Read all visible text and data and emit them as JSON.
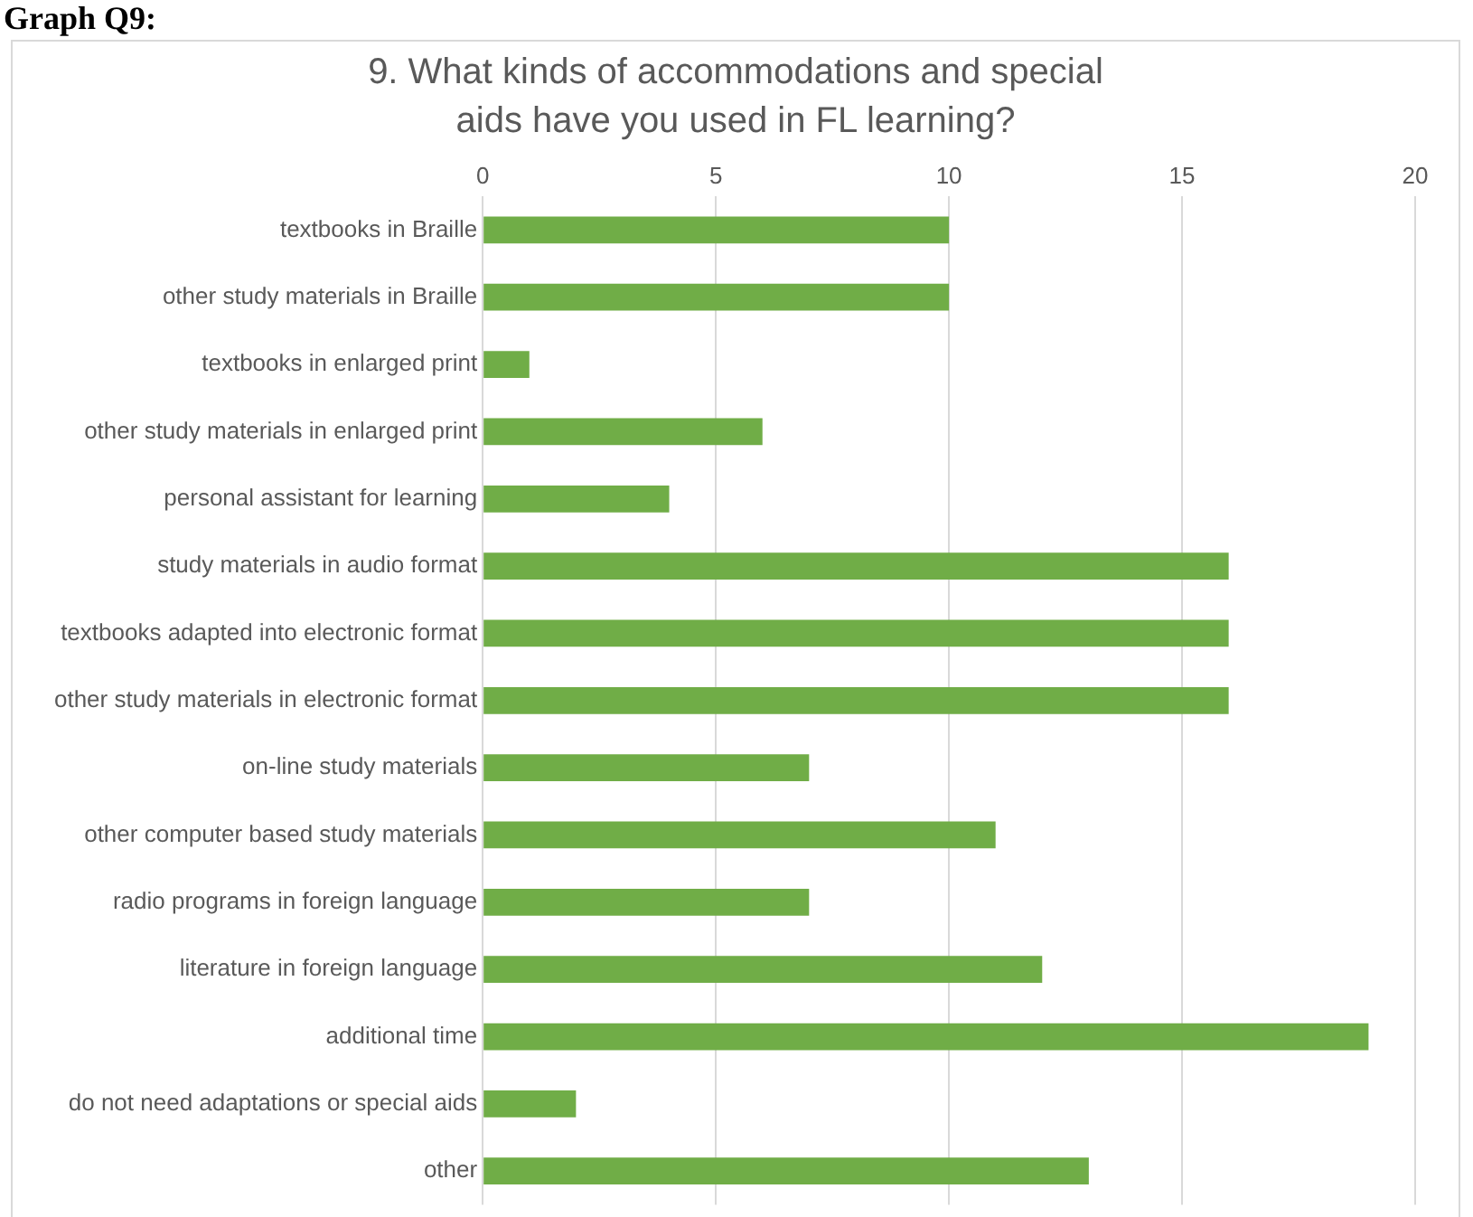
{
  "chart_data": {
    "type": "bar",
    "orientation": "horizontal",
    "title": "9. What kinds of accommodations and special aids have you used in FL learning?",
    "annotations": [
      "Graph Q9:"
    ],
    "categories": [
      "textbooks in Braille",
      "other study materials in Braille",
      "textbooks in enlarged print",
      "other study materials in enlarged print",
      "personal assistant for learning",
      "study materials in audio format",
      "textbooks adapted into electronic format",
      "other study materials in electronic format",
      "on-line study materials",
      "other computer based study materials",
      "radio programs in foreign language",
      "literature in foreign language",
      "additional time",
      "do not need adaptations or special aids",
      "other"
    ],
    "values": [
      10,
      10,
      1,
      6,
      4,
      16,
      16,
      16,
      7,
      11,
      7,
      12,
      19,
      2,
      13
    ],
    "color": "#70ad47",
    "xlim": [
      0,
      20
    ],
    "xticks": [
      0,
      5,
      10,
      15,
      20
    ],
    "grid": "x",
    "legend": false
  }
}
